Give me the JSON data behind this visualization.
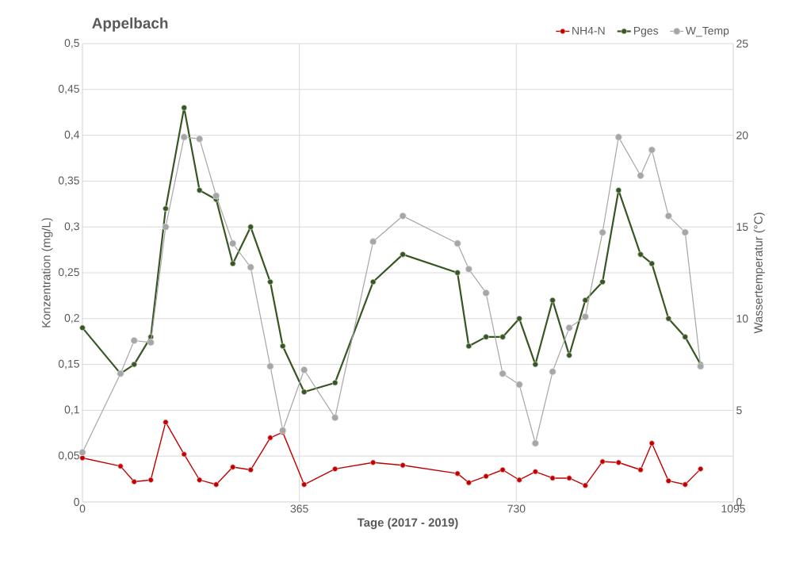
{
  "chart_data": {
    "type": "line",
    "title": "Appelbach",
    "xlabel": "Tage (2017 - 2019)",
    "ylabel": "Konzentration (mg/L)",
    "y2label": "Wassertemperatur (°C)",
    "x": [
      0,
      64,
      87,
      115,
      140,
      171,
      197,
      225,
      253,
      283,
      316,
      337,
      373,
      425,
      489,
      539,
      631,
      650,
      679,
      707,
      735,
      762,
      791,
      819,
      846,
      875,
      902,
      939,
      958,
      986,
      1014,
      1040
    ],
    "series": [
      {
        "name": "NH4-N",
        "color": "#c00000",
        "values": [
          0.048,
          0.039,
          0.022,
          0.024,
          0.087,
          0.052,
          0.024,
          0.019,
          0.038,
          0.035,
          0.07,
          0.076,
          0.019,
          0.036,
          0.043,
          0.04,
          0.031,
          0.021,
          0.028,
          0.035,
          0.024,
          0.033,
          0.026,
          0.026,
          0.018,
          0.044,
          0.043,
          0.035,
          0.064,
          0.023,
          0.019,
          0.036
        ]
      },
      {
        "name": "Pges",
        "color": "#375623",
        "values": [
          0.19,
          0.14,
          0.15,
          0.18,
          0.32,
          0.43,
          0.34,
          0.33,
          0.26,
          0.3,
          0.24,
          0.17,
          0.12,
          0.13,
          0.24,
          0.27,
          0.25,
          0.17,
          0.18,
          0.18,
          0.2,
          0.15,
          0.22,
          0.16,
          0.22,
          0.24,
          0.34,
          0.27,
          0.26,
          0.2,
          0.18,
          0.15
        ]
      },
      {
        "name": "W_Temp",
        "color": "#a6a6a6",
        "axis": "y2",
        "values": [
          2.7,
          7.0,
          8.8,
          8.7,
          15.0,
          19.9,
          19.8,
          16.7,
          14.1,
          12.8,
          7.4,
          3.9,
          7.2,
          4.6,
          14.2,
          15.6,
          14.1,
          12.7,
          11.4,
          7.0,
          6.4,
          3.2,
          7.1,
          9.5,
          10.1,
          14.7,
          19.9,
          17.8,
          19.2,
          15.6,
          14.7,
          7.4
        ]
      }
    ],
    "xlim": [
      0,
      1095
    ],
    "xticks": [
      0,
      365,
      730,
      1095
    ],
    "ylim": [
      0,
      0.5
    ],
    "yticks": [
      {
        "value": 0,
        "label": "0"
      },
      {
        "value": 0.05,
        "label": "0,05"
      },
      {
        "value": 0.1,
        "label": "0,1"
      },
      {
        "value": 0.15,
        "label": "0,15"
      },
      {
        "value": 0.2,
        "label": "0,2"
      },
      {
        "value": 0.25,
        "label": "0,25"
      },
      {
        "value": 0.3,
        "label": "0,3"
      },
      {
        "value": 0.35,
        "label": "0,35"
      },
      {
        "value": 0.4,
        "label": "0,4"
      },
      {
        "value": 0.45,
        "label": "0,45"
      },
      {
        "value": 0.5,
        "label": "0,5"
      }
    ],
    "y2lim": [
      0,
      25
    ],
    "y2ticks": [
      0,
      5,
      10,
      15,
      20,
      25
    ],
    "grid": true,
    "legend": "top right",
    "marker": "circle"
  }
}
